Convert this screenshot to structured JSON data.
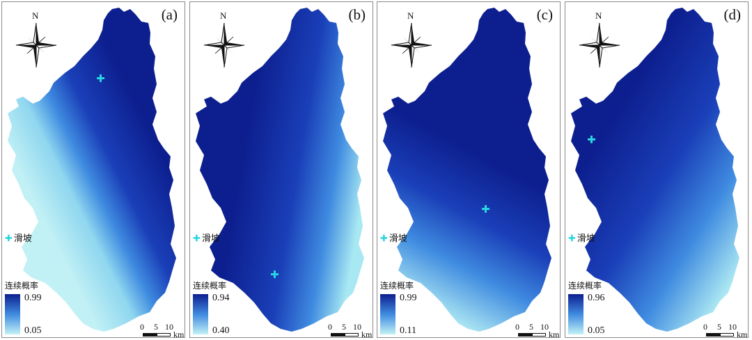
{
  "panels": [
    {
      "label": "(a)",
      "north": "N",
      "legend_title": "连续概率",
      "max": "0.99",
      "min": "0.05",
      "slide_label": "滑坡",
      "scale": [
        "0",
        "5",
        "10"
      ],
      "unit": "km",
      "site": true
    },
    {
      "label": "(b)",
      "north": "N",
      "legend_title": "连续概率",
      "max": "0.94",
      "min": "0.40",
      "slide_label": "滑坡",
      "scale": [
        "0",
        "5",
        "10"
      ],
      "unit": "km",
      "site": true
    },
    {
      "label": "(c)",
      "north": "N",
      "legend_title": "连续概率",
      "max": "0.99",
      "min": "0.11",
      "slide_label": "滑坡",
      "scale": [
        "0",
        "5",
        "10"
      ],
      "unit": "km",
      "site": true
    },
    {
      "label": "(d)",
      "north": "N",
      "legend_title": "连续概率",
      "max": "0.96",
      "min": "0.05",
      "slide_label": "滑坡",
      "scale": [
        "0",
        "5",
        "10"
      ],
      "unit": "km",
      "site": true
    }
  ],
  "colors": {
    "high": "#0d1f8f",
    "mid": "#2f6fd8",
    "low": "#bff0f4",
    "site_marker": "#2ad4e0"
  }
}
